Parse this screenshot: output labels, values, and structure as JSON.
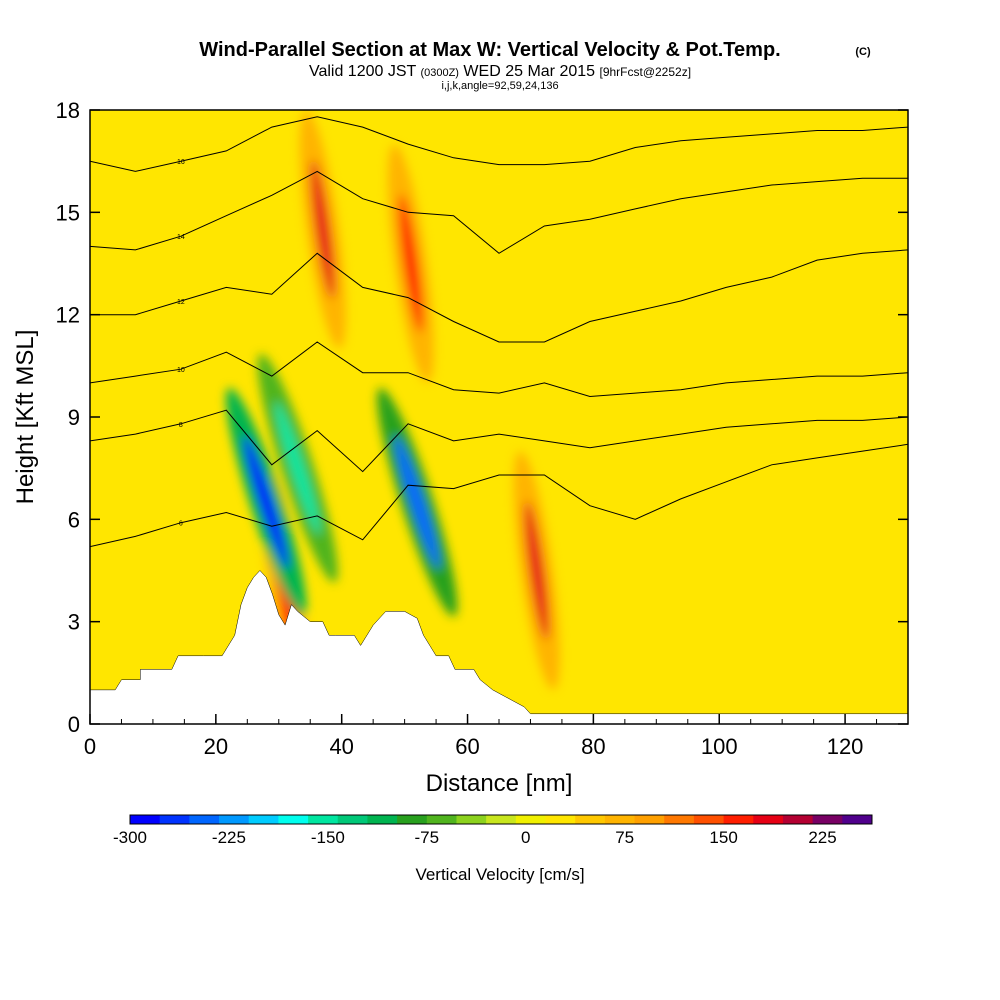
{
  "header": {
    "title": "Wind-Parallel Section at Max W: Vertical Velocity & Pot.Temp.",
    "copyright": "(C)",
    "valid_prefix": "Valid 1200 JST",
    "valid_utc": "(0300Z)",
    "valid_date": "WED 25 Mar 2015",
    "forecast": "[9hrFcst@2252z]",
    "indices": "i,j,k,angle=92,59,24,136"
  },
  "chart_data": {
    "type": "heatmap",
    "title": "Wind-Parallel Section at Max W: Vertical Velocity & Pot.Temp.",
    "xlabel": "Distance [nm]",
    "ylabel": "Height [Kft MSL]",
    "xlim": [
      0,
      130
    ],
    "ylim": [
      0,
      18
    ],
    "x_ticks": [
      0,
      20,
      40,
      60,
      80,
      100,
      120
    ],
    "y_ticks": [
      0,
      3,
      6,
      9,
      12,
      15,
      18
    ],
    "background_value": 15,
    "updrafts": [
      {
        "x": 37,
        "y": 14.5,
        "w_cm_s": 180
      },
      {
        "x": 51,
        "y": 13.5,
        "w_cm_s": 150
      },
      {
        "x": 71,
        "y": 4.5,
        "w_cm_s": 190
      },
      {
        "x": 31,
        "y": 4.0,
        "w_cm_s": 160
      }
    ],
    "downdrafts": [
      {
        "x": 28,
        "y": 6.5,
        "w_cm_s": -280
      },
      {
        "x": 52,
        "y": 6.5,
        "w_cm_s": -240
      },
      {
        "x": 33,
        "y": 7.5,
        "w_cm_s": -160
      }
    ],
    "terrain": [
      [
        0,
        1.0
      ],
      [
        4,
        1.0
      ],
      [
        5,
        1.3
      ],
      [
        8,
        1.3
      ],
      [
        8,
        1.6
      ],
      [
        13,
        1.6
      ],
      [
        14,
        2.0
      ],
      [
        17,
        2.0
      ],
      [
        18,
        2.0
      ],
      [
        21,
        2.0
      ],
      [
        22,
        2.3
      ],
      [
        23,
        2.6
      ],
      [
        24,
        3.5
      ],
      [
        25,
        4.0
      ],
      [
        26,
        4.3
      ],
      [
        27,
        4.5
      ],
      [
        28,
        4.3
      ],
      [
        29,
        3.8
      ],
      [
        30,
        3.2
      ],
      [
        31,
        2.9
      ],
      [
        32,
        3.5
      ],
      [
        33,
        3.3
      ],
      [
        35,
        3.0
      ],
      [
        37,
        3.0
      ],
      [
        38,
        2.6
      ],
      [
        39,
        2.6
      ],
      [
        42,
        2.6
      ],
      [
        43,
        2.3
      ],
      [
        45,
        2.9
      ],
      [
        47,
        3.3
      ],
      [
        50,
        3.3
      ],
      [
        52,
        3.1
      ],
      [
        53,
        2.6
      ],
      [
        54,
        2.3
      ],
      [
        55,
        2.0
      ],
      [
        57,
        2.0
      ],
      [
        58,
        1.6
      ],
      [
        61,
        1.6
      ],
      [
        62,
        1.3
      ],
      [
        64,
        1.0
      ],
      [
        66,
        0.8
      ],
      [
        69,
        0.5
      ],
      [
        70,
        0.3
      ],
      [
        130,
        0.3
      ]
    ],
    "theta_contours": [
      {
        "label": "16",
        "values_y": [
          16.5,
          16.2,
          16.5,
          16.8,
          17.5,
          17.8,
          17.5,
          17.0,
          16.6,
          16.4,
          16.4,
          16.5,
          16.9,
          17.1,
          17.2,
          17.3,
          17.4,
          17.4,
          17.5
        ]
      },
      {
        "label": "14",
        "values_y": [
          14.0,
          13.9,
          14.3,
          14.9,
          15.5,
          16.2,
          15.4,
          15.0,
          14.9,
          13.8,
          14.6,
          14.8,
          15.1,
          15.4,
          15.6,
          15.8,
          15.9,
          16.0,
          16.0
        ]
      },
      {
        "label": "12",
        "values_y": [
          12.0,
          12.0,
          12.4,
          12.8,
          12.6,
          13.8,
          12.8,
          12.5,
          11.8,
          11.2,
          11.2,
          11.8,
          12.1,
          12.4,
          12.8,
          13.1,
          13.6,
          13.8,
          13.9
        ]
      },
      {
        "label": "10",
        "values_y": [
          10.0,
          10.2,
          10.4,
          10.9,
          10.2,
          11.2,
          10.3,
          10.3,
          9.8,
          9.7,
          10.0,
          9.6,
          9.7,
          9.8,
          10.0,
          10.1,
          10.2,
          10.2,
          10.3
        ]
      },
      {
        "label": "8",
        "values_y": [
          8.3,
          8.5,
          8.8,
          9.2,
          7.6,
          8.6,
          7.4,
          8.8,
          8.3,
          8.5,
          8.3,
          8.1,
          8.3,
          8.5,
          8.7,
          8.8,
          8.9,
          8.9,
          9.0
        ]
      },
      {
        "label": "6",
        "values_y": [
          5.2,
          5.5,
          5.9,
          6.2,
          5.8,
          6.1,
          5.4,
          7.0,
          6.9,
          7.3,
          7.3,
          6.4,
          6.0,
          6.6,
          7.1,
          7.6,
          7.8,
          8.0,
          8.2
        ]
      }
    ],
    "colorbar": {
      "label": "Vertical Velocity [cm/s]",
      "ticks": [
        "-300",
        "-225",
        "-150",
        "-75",
        "0",
        "75",
        "150",
        "225"
      ],
      "tick_values": [
        -300,
        -225,
        -150,
        -75,
        0,
        75,
        150,
        225
      ],
      "min": -300,
      "max": 262.5,
      "colors": [
        "#0000ff",
        "#0033ff",
        "#0066ff",
        "#0099ff",
        "#00ccff",
        "#00ffee",
        "#00e6a0",
        "#00c878",
        "#00b450",
        "#28a01e",
        "#50b41e",
        "#8cd21e",
        "#c8e61e",
        "#f0f000",
        "#ffe600",
        "#ffc800",
        "#ffb400",
        "#ffa000",
        "#ff7800",
        "#ff5000",
        "#ff1e00",
        "#e60014",
        "#b40032",
        "#780064",
        "#50008c"
      ]
    }
  }
}
